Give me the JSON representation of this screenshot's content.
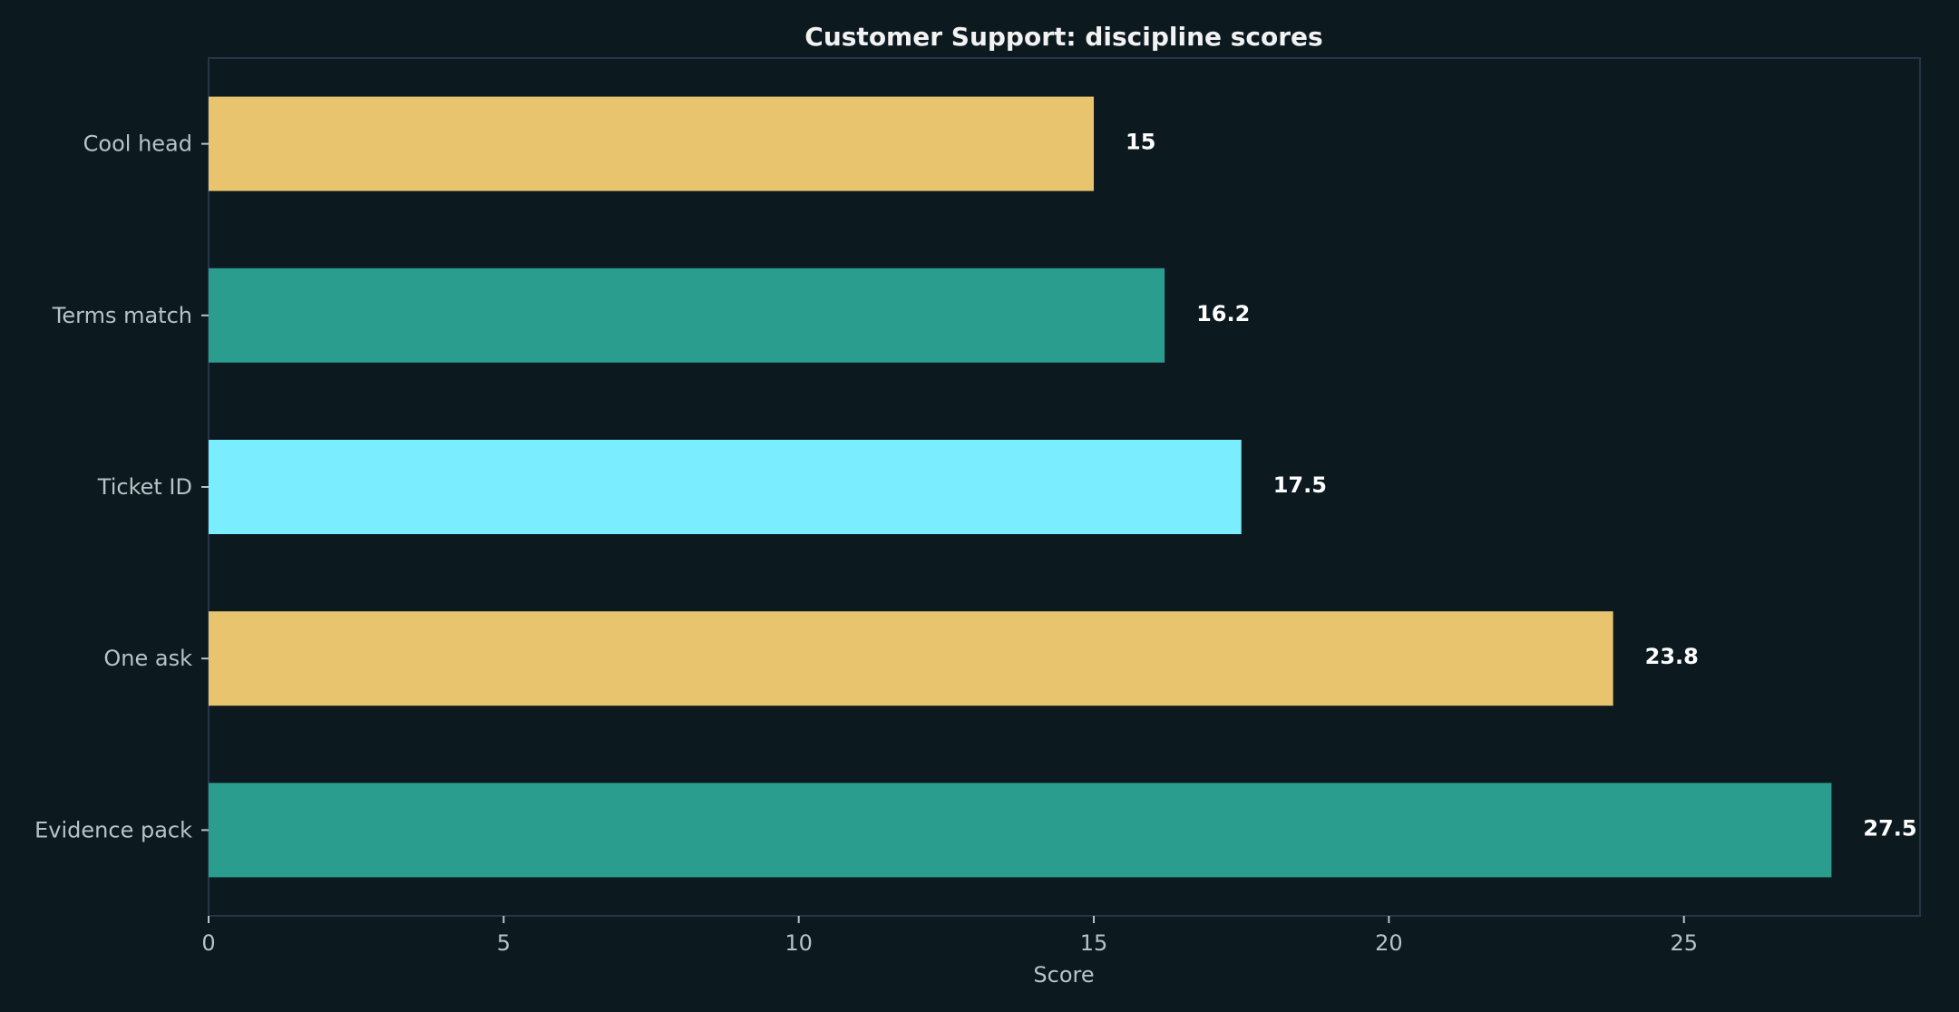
{
  "chart_data": {
    "type": "bar",
    "orientation": "horizontal",
    "title": "Customer Support: discipline scores",
    "xlabel": "Score",
    "ylabel": "",
    "xlim": [
      0,
      29
    ],
    "x_ticks": [
      0,
      5,
      10,
      15,
      20,
      25
    ],
    "categories": [
      "Cool head",
      "Terms match",
      "Ticket ID",
      "One ask",
      "Evidence pack"
    ],
    "values": [
      15,
      16.2,
      17.5,
      23.8,
      27.5
    ],
    "value_labels": [
      "15",
      "16.2",
      "17.5",
      "23.8",
      "27.5"
    ],
    "bar_colors": [
      "#e8c46e",
      "#2a9d8f",
      "#7aedfe",
      "#e8c46e",
      "#2a9d8f"
    ],
    "grid": false
  },
  "colors": {
    "background": "#0c191f",
    "frame": "#26344a",
    "text": "#b7c3c6",
    "title": "#f2f2f2"
  }
}
